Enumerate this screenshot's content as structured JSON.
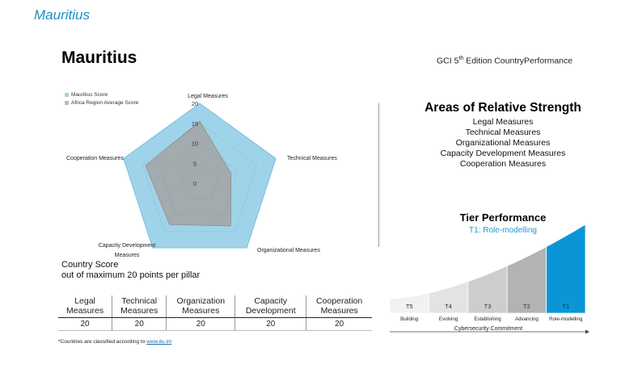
{
  "slide_title": "Mauritius",
  "country_heading": "Mauritius",
  "edition": {
    "prefix": "GCI 5",
    "sup": "th",
    "suffix": " Edition CountryPerformance"
  },
  "legend": [
    {
      "label": "Mauritius Score",
      "color": "#9fd3ea"
    },
    {
      "label": "Africa Region Average Score",
      "color": "#bcbcbc"
    }
  ],
  "chart_data": {
    "type": "radar",
    "axes": [
      "Legal Measures",
      "Technical Measures",
      "Organizational Measures",
      "Capacity Development Measures",
      "Cooperation Measures"
    ],
    "axis_labels": {
      "legal": "Legal Measures",
      "technical": "Technical Measures",
      "organizational": "Organizational Measures",
      "capacity_line1": "Capacity Development",
      "capacity_line2": "Measures",
      "cooperation": "Cooperation Measures"
    },
    "rlim": [
      0,
      20
    ],
    "ticks": [
      "0",
      "5",
      "10",
      "15",
      "20"
    ],
    "series": [
      {
        "name": "Mauritius Score",
        "values": [
          20,
          20,
          20,
          20,
          20
        ],
        "color": "#9fd3ea",
        "stroke": "#6cbbd9"
      },
      {
        "name": "Africa Region Average Score",
        "values": [
          15.5,
          8.2,
          13.2,
          12.8,
          14.2
        ],
        "color": "#a3a3a3",
        "stroke": "#8c8c8c"
      }
    ]
  },
  "score_note": {
    "line1": "Country Score",
    "line2": "out of maximum 20 points per pillar"
  },
  "score_table": {
    "headers": [
      {
        "line1": "Legal",
        "line2": "Measures"
      },
      {
        "line1": "Technical",
        "line2": "Measures"
      },
      {
        "line1": "Organization",
        "line2": "Measures"
      },
      {
        "line1": "Capacity",
        "line2": "Development"
      },
      {
        "line1": "Cooperation",
        "line2": "Measures"
      }
    ],
    "values": [
      "20",
      "20",
      "20",
      "20",
      "20"
    ]
  },
  "footnote": {
    "text": "*Countries are classified according to ",
    "link": "www.itu.int"
  },
  "strengths": {
    "title": "Areas of Relative Strength",
    "items": [
      "Legal Measures",
      "Technical Measures",
      "Organizational Measures",
      "Capacity Development Measures",
      "Cooperation Measures"
    ]
  },
  "tier": {
    "title": "Tier Performance",
    "subtitle": "T1: Role-modelling",
    "active_index": 4,
    "active_color": "#0a96d6",
    "tiers": [
      {
        "code": "T5",
        "label": "Building",
        "color": "#f1f1f1"
      },
      {
        "code": "T4",
        "label": "Evolving",
        "color": "#e3e3e3"
      },
      {
        "code": "T3",
        "label": "Establishing",
        "color": "#cdcdcd"
      },
      {
        "code": "T2",
        "label": "Advancing",
        "color": "#b3b3b3"
      },
      {
        "code": "T1",
        "label": "Role-modelling",
        "color": "#0a96d6"
      }
    ],
    "axis_label": "Cybersecurity Commitment"
  }
}
